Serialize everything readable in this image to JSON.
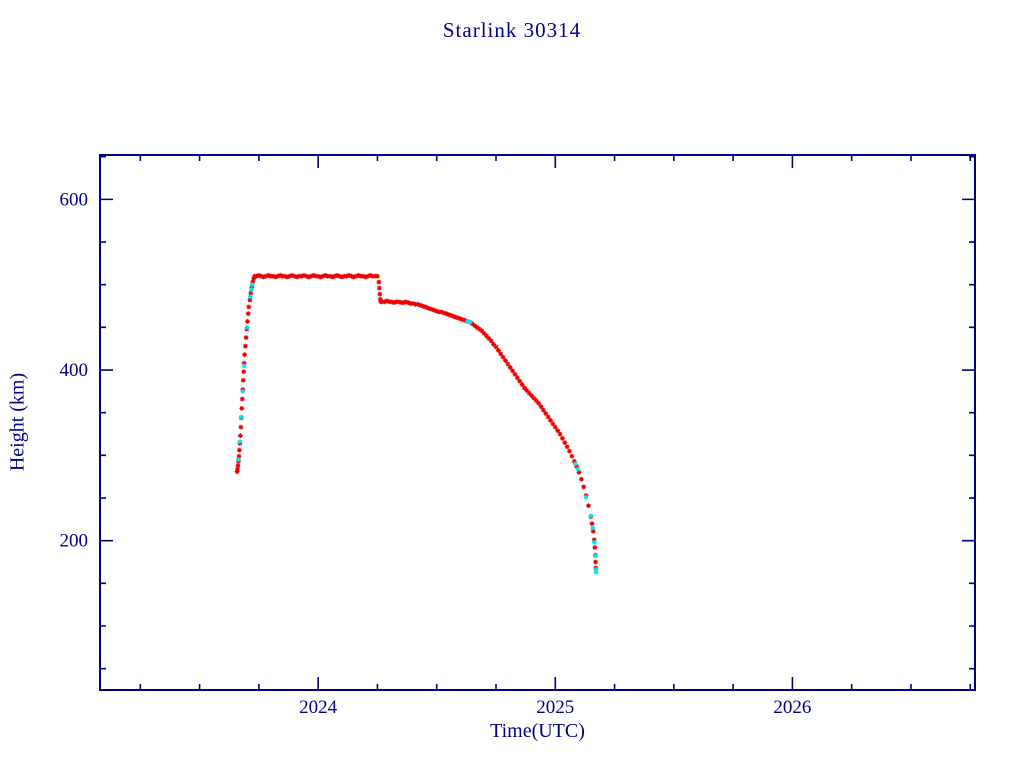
{
  "page": {
    "background": "#ffffff"
  },
  "chart_data": {
    "type": "scatter",
    "title": "Starlink 30314",
    "xlabel": "Time(UTC)",
    "ylabel": "Height (km)",
    "xlim": [
      2023.08,
      2026.77
    ],
    "ylim": [
      25,
      652
    ],
    "x_major_ticks": [
      2024,
      2025,
      2026
    ],
    "x_minor_step": 0.25,
    "y_major_ticks": [
      200,
      400,
      600
    ],
    "y_minor_step": 50,
    "grid": false,
    "legend": "none",
    "frame_color": "#000080",
    "text_color": "#000080",
    "series": [
      {
        "name": "height-red",
        "color": "#ee0000",
        "marker": "asterisk",
        "points": [
          [
            2023.658,
            281
          ],
          [
            2023.66,
            284
          ],
          [
            2023.662,
            288
          ],
          [
            2023.664,
            293
          ],
          [
            2023.666,
            299
          ],
          [
            2023.668,
            306
          ],
          [
            2023.67,
            314
          ],
          [
            2023.672,
            323
          ],
          [
            2023.674,
            333
          ],
          [
            2023.676,
            344
          ],
          [
            2023.678,
            355
          ],
          [
            2023.68,
            366
          ],
          [
            2023.682,
            377
          ],
          [
            2023.684,
            388
          ],
          [
            2023.686,
            398
          ],
          [
            2023.688,
            408
          ],
          [
            2023.69,
            418
          ],
          [
            2023.693,
            428
          ],
          [
            2023.696,
            438
          ],
          [
            2023.699,
            448
          ],
          [
            2023.702,
            457
          ],
          [
            2023.705,
            466
          ],
          [
            2023.708,
            474
          ],
          [
            2023.712,
            482
          ],
          [
            2023.716,
            490
          ],
          [
            2023.72,
            497
          ],
          [
            2023.724,
            503
          ],
          [
            2023.728,
            507
          ],
          [
            2023.732,
            510
          ],
          [
            2023.74,
            510
          ],
          [
            2023.75,
            511
          ],
          [
            2023.76,
            510
          ],
          [
            2023.77,
            509
          ],
          [
            2023.78,
            510
          ],
          [
            2023.79,
            511
          ],
          [
            2023.8,
            510
          ],
          [
            2023.81,
            510
          ],
          [
            2023.82,
            509
          ],
          [
            2023.83,
            510
          ],
          [
            2023.84,
            511
          ],
          [
            2023.85,
            510
          ],
          [
            2023.86,
            510
          ],
          [
            2023.87,
            509
          ],
          [
            2023.88,
            510
          ],
          [
            2023.89,
            511
          ],
          [
            2023.9,
            510
          ],
          [
            2023.91,
            509
          ],
          [
            2023.92,
            510
          ],
          [
            2023.93,
            510
          ],
          [
            2023.94,
            511
          ],
          [
            2023.95,
            510
          ],
          [
            2023.96,
            509
          ],
          [
            2023.97,
            510
          ],
          [
            2023.98,
            511
          ],
          [
            2023.99,
            510
          ],
          [
            2024.0,
            510
          ],
          [
            2024.01,
            509
          ],
          [
            2024.02,
            510
          ],
          [
            2024.03,
            511
          ],
          [
            2024.04,
            510
          ],
          [
            2024.05,
            510
          ],
          [
            2024.06,
            509
          ],
          [
            2024.07,
            510
          ],
          [
            2024.08,
            511
          ],
          [
            2024.09,
            510
          ],
          [
            2024.1,
            509
          ],
          [
            2024.11,
            510
          ],
          [
            2024.12,
            510
          ],
          [
            2024.13,
            511
          ],
          [
            2024.14,
            510
          ],
          [
            2024.15,
            509
          ],
          [
            2024.16,
            510
          ],
          [
            2024.17,
            511
          ],
          [
            2024.18,
            510
          ],
          [
            2024.19,
            510
          ],
          [
            2024.2,
            509
          ],
          [
            2024.21,
            510
          ],
          [
            2024.22,
            511
          ],
          [
            2024.23,
            510
          ],
          [
            2024.24,
            510
          ],
          [
            2024.25,
            510
          ],
          [
            2024.256,
            503
          ],
          [
            2024.258,
            496
          ],
          [
            2024.26,
            489
          ],
          [
            2024.262,
            483
          ],
          [
            2024.264,
            480
          ],
          [
            2024.27,
            480
          ],
          [
            2024.28,
            480
          ],
          [
            2024.29,
            481
          ],
          [
            2024.3,
            480
          ],
          [
            2024.31,
            480
          ],
          [
            2024.32,
            479
          ],
          [
            2024.33,
            480
          ],
          [
            2024.34,
            480
          ],
          [
            2024.35,
            479
          ],
          [
            2024.36,
            479
          ],
          [
            2024.37,
            480
          ],
          [
            2024.38,
            479
          ],
          [
            2024.39,
            478
          ],
          [
            2024.4,
            478
          ],
          [
            2024.41,
            477
          ],
          [
            2024.42,
            477
          ],
          [
            2024.43,
            476
          ],
          [
            2024.44,
            475
          ],
          [
            2024.45,
            474
          ],
          [
            2024.46,
            473
          ],
          [
            2024.47,
            472
          ],
          [
            2024.48,
            471
          ],
          [
            2024.49,
            470
          ],
          [
            2024.5,
            469
          ],
          [
            2024.51,
            468
          ],
          [
            2024.52,
            468
          ],
          [
            2024.53,
            467
          ],
          [
            2024.54,
            466
          ],
          [
            2024.55,
            465
          ],
          [
            2024.56,
            464
          ],
          [
            2024.57,
            463
          ],
          [
            2024.58,
            462
          ],
          [
            2024.59,
            461
          ],
          [
            2024.6,
            460
          ],
          [
            2024.61,
            459
          ],
          [
            2024.62,
            458
          ],
          [
            2024.63,
            457
          ],
          [
            2024.64,
            456
          ],
          [
            2024.65,
            454
          ],
          [
            2024.66,
            452
          ],
          [
            2024.67,
            450
          ],
          [
            2024.68,
            448
          ],
          [
            2024.69,
            446
          ],
          [
            2024.7,
            443
          ],
          [
            2024.71,
            440
          ],
          [
            2024.72,
            437
          ],
          [
            2024.73,
            434
          ],
          [
            2024.74,
            430
          ],
          [
            2024.75,
            427
          ],
          [
            2024.76,
            423
          ],
          [
            2024.77,
            419
          ],
          [
            2024.78,
            415
          ],
          [
            2024.79,
            411
          ],
          [
            2024.8,
            407
          ],
          [
            2024.81,
            403
          ],
          [
            2024.82,
            399
          ],
          [
            2024.83,
            395
          ],
          [
            2024.84,
            391
          ],
          [
            2024.85,
            387
          ],
          [
            2024.86,
            383
          ],
          [
            2024.87,
            379
          ],
          [
            2024.88,
            376
          ],
          [
            2024.89,
            373
          ],
          [
            2024.9,
            370
          ],
          [
            2024.91,
            367
          ],
          [
            2024.92,
            364
          ],
          [
            2024.93,
            361
          ],
          [
            2024.94,
            357
          ],
          [
            2024.95,
            353
          ],
          [
            2024.96,
            349
          ],
          [
            2024.97,
            345
          ],
          [
            2024.98,
            341
          ],
          [
            2024.99,
            337
          ],
          [
            2025.0,
            333
          ],
          [
            2025.01,
            329
          ],
          [
            2025.02,
            325
          ],
          [
            2025.03,
            320
          ],
          [
            2025.04,
            315
          ],
          [
            2025.05,
            310
          ],
          [
            2025.06,
            305
          ],
          [
            2025.07,
            299
          ],
          [
            2025.08,
            293
          ],
          [
            2025.09,
            287
          ],
          [
            2025.1,
            280
          ],
          [
            2025.11,
            272
          ],
          [
            2025.12,
            263
          ],
          [
            2025.13,
            253
          ],
          [
            2025.14,
            241
          ],
          [
            2025.15,
            228
          ],
          [
            2025.155,
            220
          ],
          [
            2025.16,
            211
          ],
          [
            2025.164,
            201
          ],
          [
            2025.167,
            192
          ],
          [
            2025.169,
            183
          ],
          [
            2025.17,
            175
          ],
          [
            2025.171,
            168
          ]
        ]
      },
      {
        "name": "height-cyan",
        "color": "#00e5ee",
        "marker": "asterisk",
        "points": [
          [
            2023.664,
            295
          ],
          [
            2023.67,
            316
          ],
          [
            2023.676,
            345
          ],
          [
            2023.682,
            375
          ],
          [
            2023.688,
            405
          ],
          [
            2023.7,
            450
          ],
          [
            2023.714,
            486
          ],
          [
            2023.718,
            494
          ],
          [
            2023.722,
            500
          ],
          [
            2024.63,
            457
          ],
          [
            2024.64,
            456
          ],
          [
            2025.085,
            290
          ],
          [
            2025.095,
            284
          ],
          [
            2025.13,
            251
          ],
          [
            2025.15,
            229
          ],
          [
            2025.158,
            215
          ],
          [
            2025.165,
            198
          ],
          [
            2025.169,
            182
          ],
          [
            2025.171,
            166
          ],
          [
            2025.172,
            163
          ]
        ]
      }
    ]
  }
}
